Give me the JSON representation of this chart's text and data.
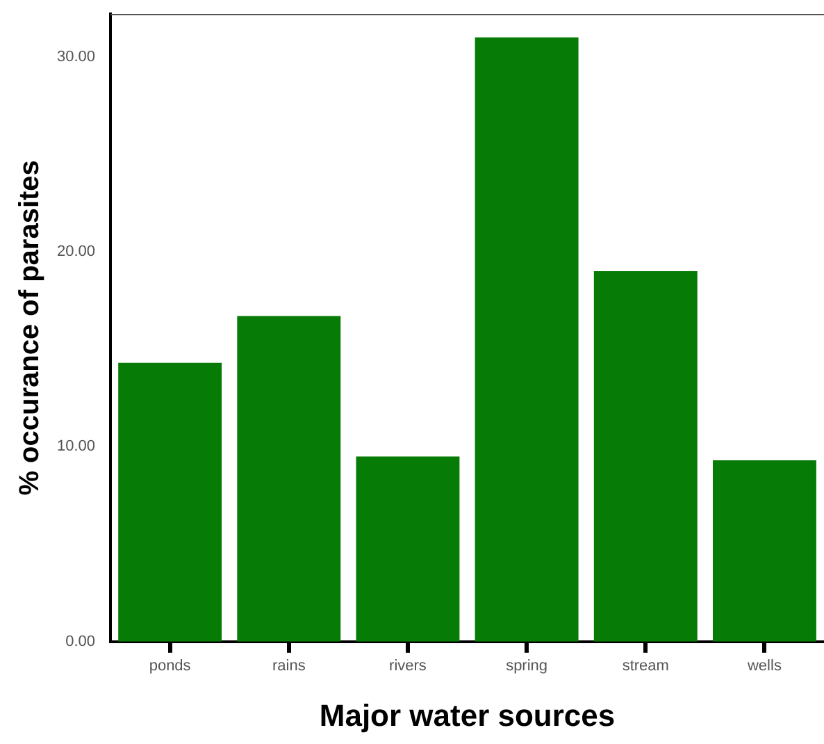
{
  "chart_data": {
    "type": "bar",
    "xlabel": "Major water sources",
    "ylabel": "% occurance of parasites",
    "categories": [
      "ponds",
      "rains",
      "rivers",
      "spring",
      "stream",
      "wells"
    ],
    "values": [
      14.3,
      16.7,
      9.5,
      31.0,
      19.0,
      9.3
    ],
    "color": "#067b06",
    "ylim": [
      0,
      32.2
    ],
    "yticks": [
      {
        "value": 0,
        "label": "0.00"
      },
      {
        "value": 10,
        "label": "10.00"
      },
      {
        "value": 20,
        "label": "20.00"
      },
      {
        "value": 30,
        "label": "30.00"
      }
    ],
    "grid": false,
    "legend": false
  }
}
